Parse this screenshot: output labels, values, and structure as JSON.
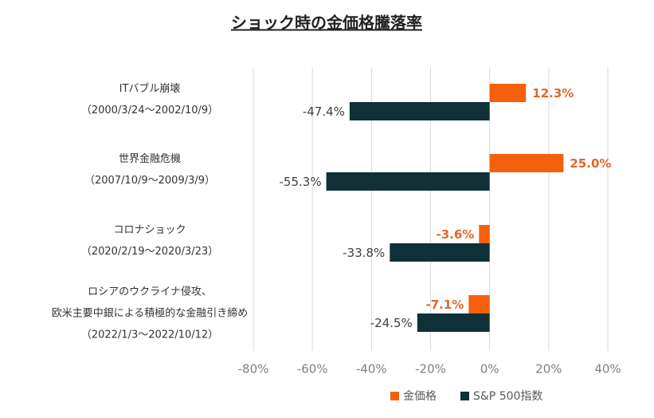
{
  "chart_data": {
    "type": "hbar",
    "title": "ショック時の金価格騰落率",
    "categories": [
      [
        "ITバブル崩壊",
        "（2000/3/24～2002/10/9）"
      ],
      [
        "世界金融危機",
        "（2007/10/9～2009/3/9）"
      ],
      [
        "コロナショック",
        "（2020/2/19～2020/3/23）"
      ],
      [
        "ロシアのウクライナ侵攻、",
        "欧米主要中銀による積極的な金融引き締め",
        "（2022/1/3～2022/10/12）"
      ]
    ],
    "series": [
      {
        "name": "金価格",
        "color": "#f4600c",
        "label_color": "#e0672a",
        "values": [
          12.3,
          25.0,
          -3.6,
          -7.1
        ],
        "value_labels": [
          "12.3%",
          "25.0%",
          "-3.6%",
          "-7.1%"
        ]
      },
      {
        "name": "S&P 500指数",
        "color": "#0e3036",
        "label_color": "#404040",
        "values": [
          -47.4,
          -55.3,
          -33.8,
          -24.5
        ],
        "value_labels": [
          "-47.4%",
          "-55.3%",
          "-33.8%",
          "-24.5%"
        ]
      }
    ],
    "xlim": [
      -80,
      40
    ],
    "xticks": [
      {
        "value": -80,
        "label": "-80%"
      },
      {
        "value": -60,
        "label": "-60%"
      },
      {
        "value": -40,
        "label": "-40%"
      },
      {
        "value": -20,
        "label": "-20%"
      },
      {
        "value": 0,
        "label": "0%"
      },
      {
        "value": 20,
        "label": "20%"
      },
      {
        "value": 40,
        "label": "40%"
      }
    ],
    "grid": true,
    "legend": "bottom"
  }
}
